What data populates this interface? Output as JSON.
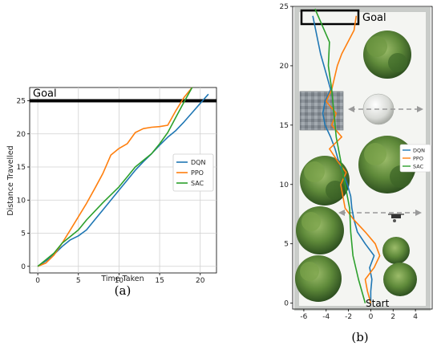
{
  "chart_data": [
    {
      "type": "line",
      "panel_label": "(a)",
      "xlabel": "Time Taken",
      "ylabel": "Distance Travelled",
      "xlim": [
        -1,
        22
      ],
      "ylim": [
        -1,
        27
      ],
      "xticks": [
        0,
        5,
        10,
        15,
        20
      ],
      "yticks": [
        0,
        5,
        10,
        15,
        20,
        25
      ],
      "grid": true,
      "legend": "center-right",
      "annotation": {
        "text": "Goal",
        "y": 25
      },
      "series": [
        {
          "name": "DQN",
          "color": "#1f77b4",
          "x": [
            0,
            1,
            2,
            3,
            4,
            5,
            6,
            7,
            8,
            9,
            10,
            11,
            12,
            13,
            14,
            15,
            16,
            17,
            18,
            19,
            20,
            21
          ],
          "y": [
            0,
            0.8,
            1.8,
            3,
            4,
            4.6,
            5.5,
            7,
            8.5,
            10,
            11.5,
            13,
            14.5,
            15.8,
            17,
            18.3,
            19.5,
            20.5,
            21.8,
            23.2,
            24.6,
            26
          ]
        },
        {
          "name": "PPO",
          "color": "#ff7f0e",
          "x": [
            0,
            1,
            2,
            3,
            4,
            5,
            6,
            7,
            8,
            9,
            10,
            11,
            12,
            13,
            14,
            15,
            16,
            17,
            18,
            19
          ],
          "y": [
            0,
            0.5,
            1.7,
            3.5,
            5.5,
            7.5,
            9.5,
            11.7,
            14,
            16.8,
            17.8,
            18.5,
            20.2,
            20.8,
            21,
            21.1,
            21.3,
            23.5,
            25.5,
            27
          ]
        },
        {
          "name": "SAC",
          "color": "#2ca02c",
          "x": [
            0,
            1,
            2,
            3,
            4,
            5,
            6,
            7,
            8,
            9,
            10,
            11,
            12,
            13,
            14,
            15,
            16,
            17,
            18,
            19
          ],
          "y": [
            0,
            1,
            2,
            3.5,
            4.5,
            5.5,
            7,
            8.3,
            9.6,
            10.8,
            12,
            13.5,
            15,
            16,
            17,
            18.5,
            20.2,
            22.5,
            24.8,
            27
          ]
        }
      ]
    },
    {
      "type": "line",
      "panel_label": "(b)",
      "xlim": [
        -7,
        5.5
      ],
      "ylim": [
        -0.5,
        25
      ],
      "xticks": [
        -6,
        -4,
        -2,
        0,
        2,
        4
      ],
      "yticks": [
        0,
        5,
        10,
        15,
        20,
        25
      ],
      "grid": false,
      "legend": "center-right",
      "annotations": [
        {
          "text": "Goal",
          "x": -1.2,
          "y": 24.2
        },
        {
          "text": "Start",
          "x": -0.8,
          "y": -0.3
        }
      ],
      "series": [
        {
          "name": "DQN",
          "color": "#1f77b4",
          "x": [
            0,
            0,
            0.1,
            -0.1,
            0.3,
            -0.5,
            -1.2,
            -1.5,
            -1.7,
            -1.8,
            -2.1,
            -2.5,
            -2.9,
            -3.2,
            -3.6,
            -4.1,
            -4.3,
            -4.1,
            -3.6,
            -3.9,
            -4.5,
            -5.2
          ],
          "y": [
            0,
            1,
            2,
            3,
            4,
            5,
            6,
            7,
            8,
            9,
            10,
            11,
            12,
            13,
            14,
            15,
            16,
            17,
            18,
            19,
            21,
            24.2
          ]
        },
        {
          "name": "PPO",
          "color": "#ff7f0e",
          "x": [
            0,
            -0.3,
            -0.5,
            0.3,
            0.8,
            0.4,
            -0.5,
            -1.5,
            -2.3,
            -2.7,
            -2.2,
            -3.0,
            -3.7,
            -2.6,
            -3.5,
            -3.1,
            -4.0,
            -3.5,
            -3.0,
            -2.6,
            -1.5,
            -1.3
          ],
          "y": [
            0,
            1,
            2,
            3,
            4,
            5,
            6,
            7,
            8,
            10,
            11,
            12,
            13,
            14,
            15,
            16,
            17,
            18,
            20,
            21,
            23,
            24.2
          ]
        },
        {
          "name": "SAC",
          "color": "#2ca02c",
          "x": [
            -0.5,
            -1.1,
            -1.6,
            -1.8,
            -1.9,
            -2.3,
            -2.7,
            -3.1,
            -3.3,
            -3.5,
            -3.8,
            -3.7,
            -4.4,
            -5.0
          ],
          "y": [
            0,
            2,
            4,
            6,
            8,
            10,
            12,
            14,
            16,
            18,
            20,
            22,
            23.5,
            24.8
          ]
        }
      ]
    }
  ]
}
